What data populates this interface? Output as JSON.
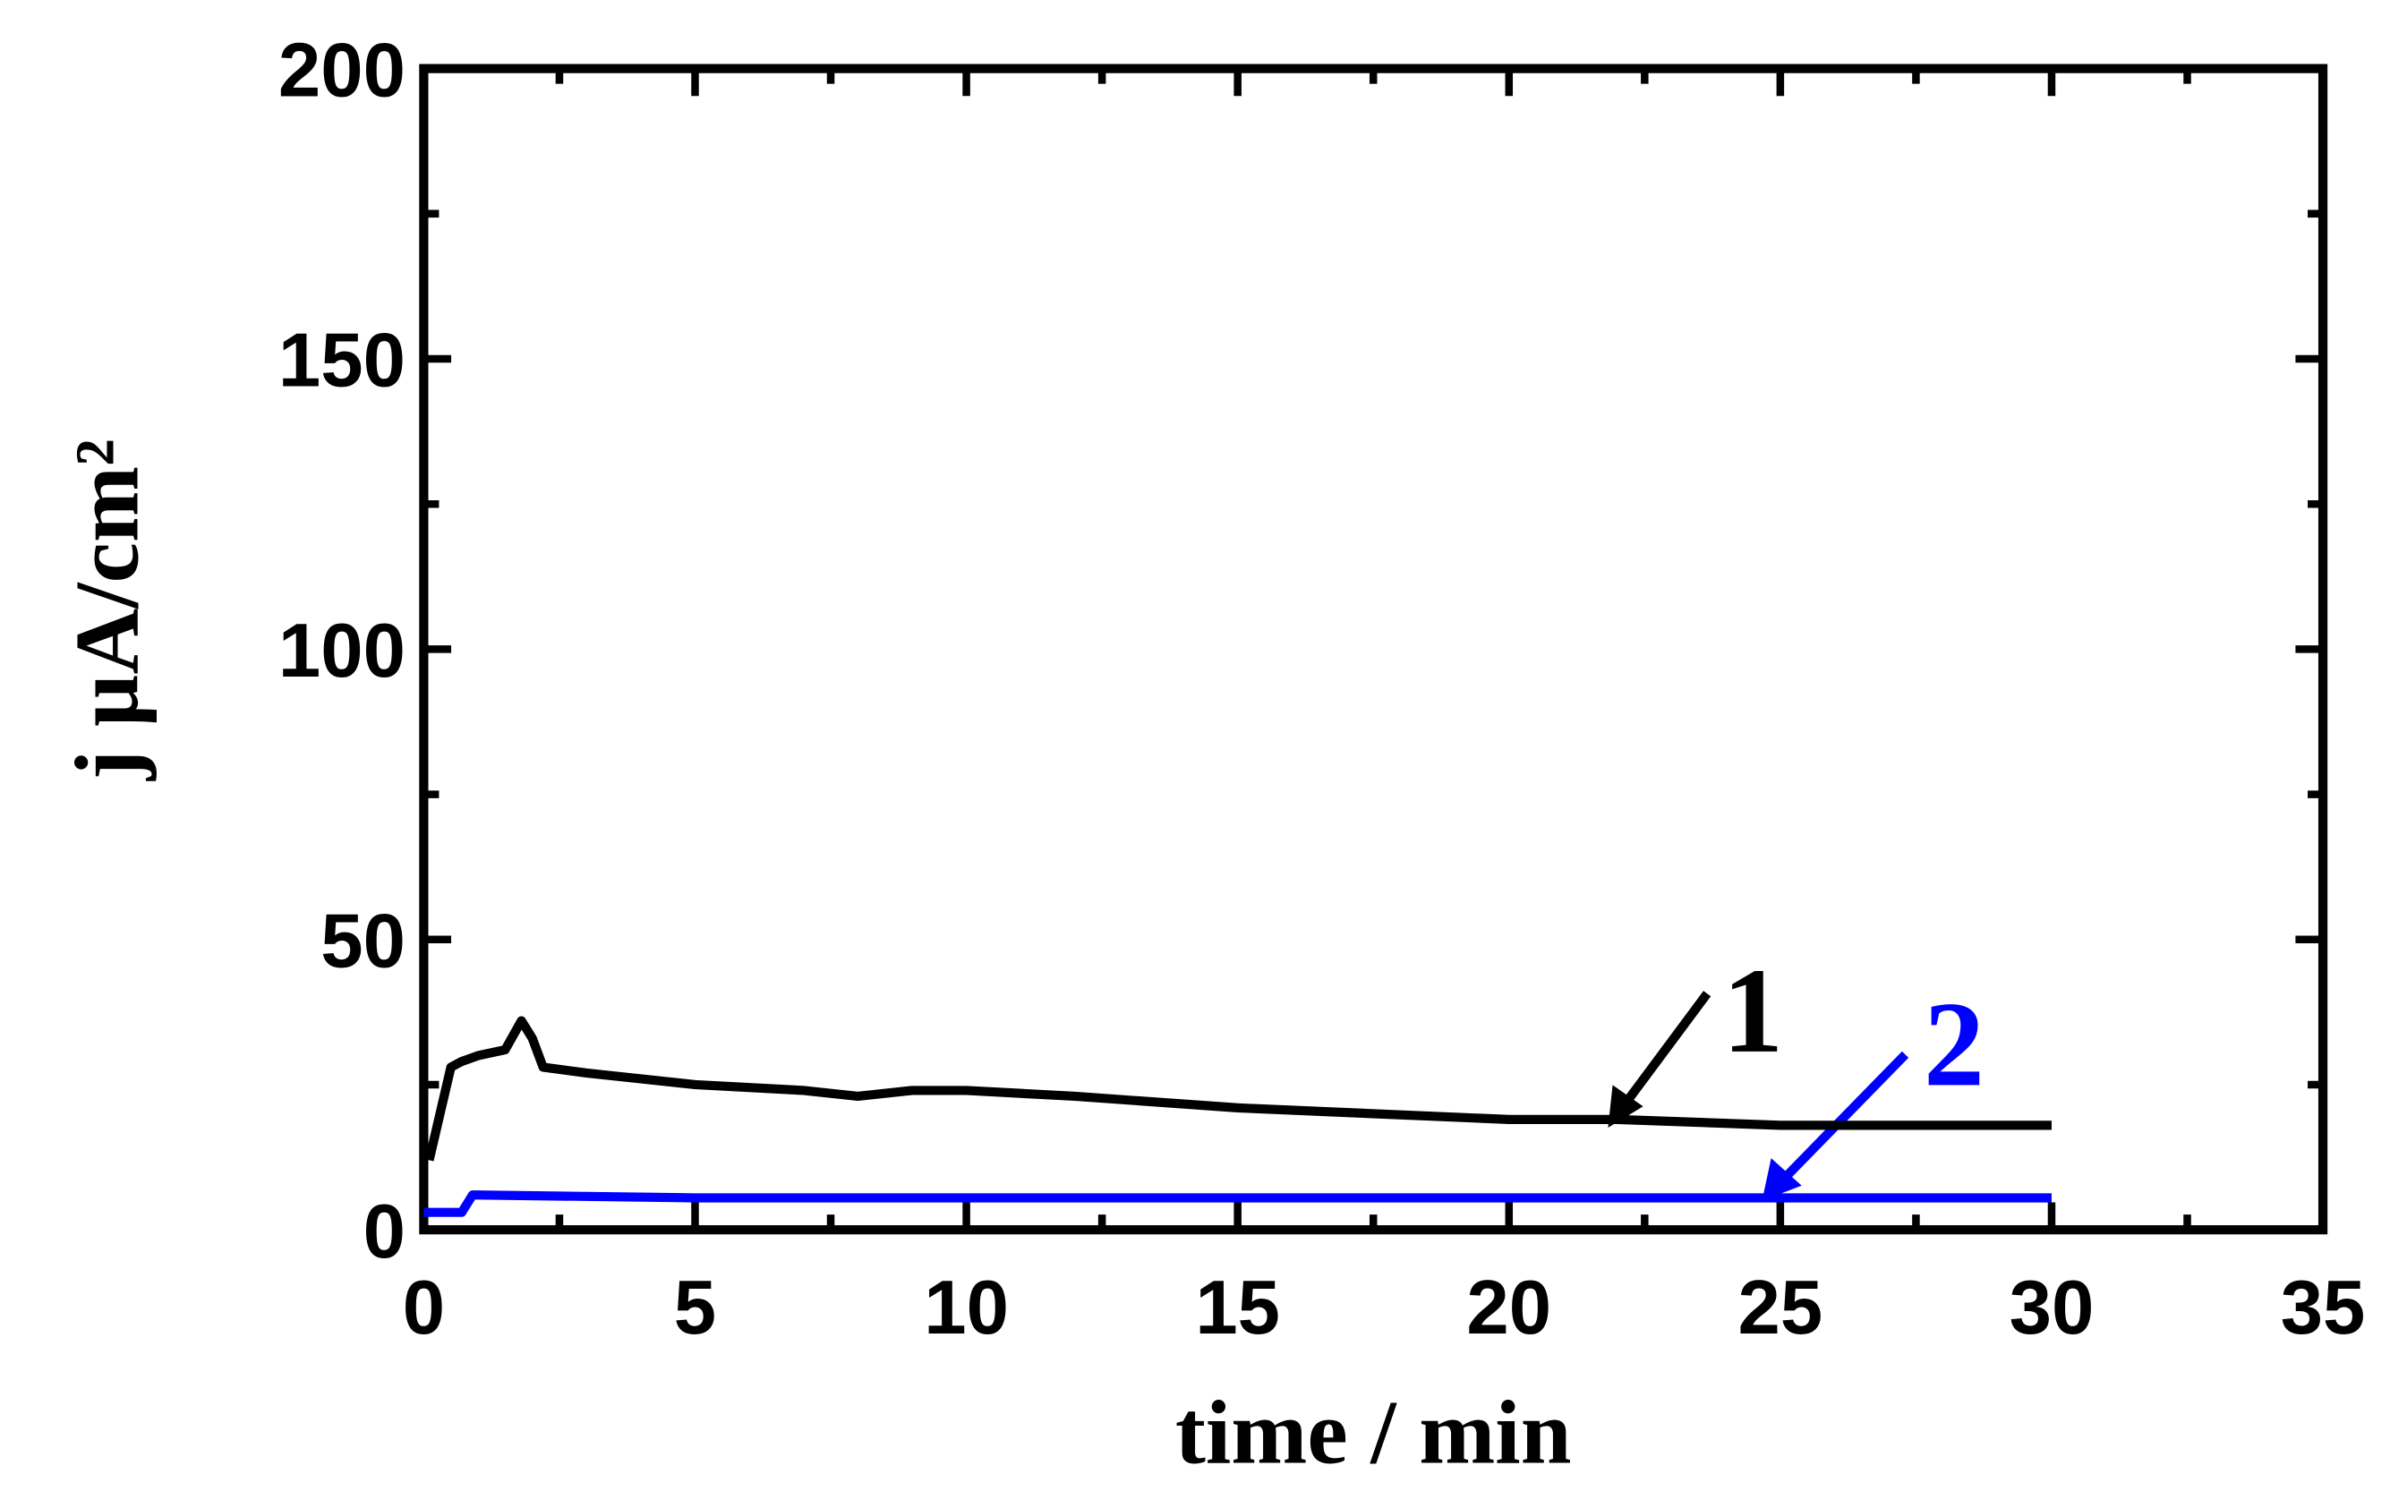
{
  "chart_data": {
    "type": "line",
    "x_label": "time / min",
    "y_label": "j µA/cm²",
    "xlim": [
      0,
      35
    ],
    "xticks": [
      0,
      5,
      10,
      15,
      20,
      25,
      30,
      35
    ],
    "ylim": [
      0,
      200
    ],
    "yticks": [
      0,
      50,
      100,
      150,
      200
    ],
    "series": [
      {
        "name": "1",
        "color": "#000000",
        "x": [
          0.1,
          0.3,
          0.5,
          0.7,
          1.0,
          1.5,
          1.8,
          2.0,
          2.2,
          3,
          5,
          7,
          8,
          9,
          10,
          12,
          15,
          20,
          22,
          25,
          28,
          30
        ],
        "values": [
          12,
          20,
          28,
          29,
          30,
          31,
          36,
          33,
          28,
          27,
          25,
          24,
          23,
          24,
          24,
          23,
          21,
          19,
          19,
          18,
          18,
          18
        ]
      },
      {
        "name": "2",
        "color": "#0000ff",
        "x": [
          0,
          0.7,
          0.9,
          1,
          5,
          30
        ],
        "values": [
          3,
          3,
          6,
          6,
          5.5,
          5.5
        ]
      }
    ]
  }
}
